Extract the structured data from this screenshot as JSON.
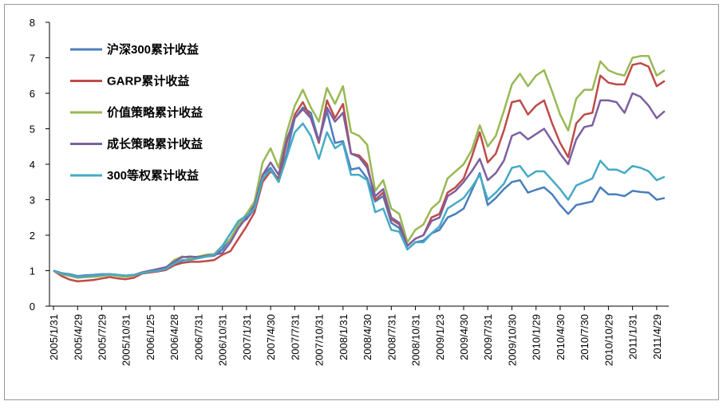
{
  "chart_data": {
    "type": "line",
    "categories": [
      "2005/1/31",
      null,
      null,
      "2005/4/29",
      null,
      null,
      "2005/7/29",
      null,
      null,
      "2005/10/31",
      null,
      null,
      "2006/1/25",
      null,
      null,
      "2006/4/28",
      null,
      null,
      "2006/7/31",
      null,
      null,
      "2006/10/31",
      null,
      null,
      "2007/1/31",
      null,
      null,
      "2007/4/30",
      null,
      null,
      "2007/7/31",
      null,
      null,
      "2007/10/31",
      null,
      null,
      "2008/1/31",
      null,
      null,
      "2008/4/30",
      null,
      null,
      "2008/7/31",
      null,
      null,
      "2008/10/31",
      null,
      null,
      "2009/1/23",
      null,
      null,
      "2009/4/30",
      null,
      null,
      "2009/7/31",
      null,
      null,
      "2009/10/30",
      null,
      null,
      "2010/1/29",
      null,
      null,
      "2010/4/30",
      null,
      null,
      "2010/7/30",
      null,
      null,
      "2010/10/29",
      null,
      null,
      "2011/1/31",
      null,
      null,
      "2011/4/29",
      null
    ],
    "series": [
      {
        "name": "沪深300累计收益",
        "color": "#4a7ebb",
        "values": [
          1.0,
          0.93,
          0.9,
          0.85,
          0.87,
          0.88,
          0.9,
          0.9,
          0.87,
          0.85,
          0.88,
          0.92,
          0.98,
          1.02,
          1.05,
          1.15,
          1.28,
          1.32,
          1.35,
          1.4,
          1.42,
          1.6,
          1.9,
          2.3,
          2.45,
          2.75,
          3.7,
          3.9,
          3.55,
          4.3,
          5.3,
          5.6,
          5.45,
          4.65,
          5.5,
          4.6,
          4.65,
          3.85,
          3.9,
          3.6,
          2.95,
          3.1,
          2.35,
          2.2,
          1.6,
          1.8,
          1.85,
          2.05,
          2.15,
          2.5,
          2.6,
          2.75,
          3.25,
          3.75,
          2.85,
          3.05,
          3.3,
          3.5,
          3.55,
          3.2,
          3.28,
          3.35,
          3.15,
          2.85,
          2.6,
          2.85,
          2.9,
          2.95,
          3.35,
          3.15,
          3.15,
          3.1,
          3.25,
          3.22,
          3.2,
          3.0,
          3.05
        ]
      },
      {
        "name": "GARP累计收益",
        "color": "#be4b48",
        "values": [
          1.0,
          0.85,
          0.75,
          0.7,
          0.72,
          0.74,
          0.78,
          0.82,
          0.78,
          0.76,
          0.8,
          0.92,
          0.95,
          0.98,
          1.02,
          1.15,
          1.22,
          1.25,
          1.25,
          1.27,
          1.3,
          1.45,
          1.55,
          1.9,
          2.25,
          2.65,
          3.5,
          3.8,
          3.6,
          4.6,
          5.4,
          5.75,
          5.3,
          4.6,
          5.8,
          5.3,
          5.7,
          4.3,
          4.25,
          4.0,
          3.0,
          3.2,
          2.45,
          2.3,
          1.7,
          1.9,
          2.0,
          2.5,
          2.6,
          3.2,
          3.35,
          3.6,
          4.2,
          4.9,
          4.05,
          4.3,
          4.95,
          5.75,
          5.8,
          5.4,
          5.65,
          5.8,
          5.15,
          4.6,
          4.2,
          5.15,
          5.4,
          5.45,
          6.5,
          6.3,
          6.25,
          6.25,
          6.8,
          6.85,
          6.75,
          6.2,
          6.35
        ]
      },
      {
        "name": "价值策略累计收益",
        "color": "#98b954",
        "values": [
          1.0,
          0.9,
          0.85,
          0.8,
          0.82,
          0.83,
          0.85,
          0.88,
          0.85,
          0.83,
          0.86,
          0.95,
          1.0,
          1.03,
          1.08,
          1.3,
          1.4,
          1.35,
          1.4,
          1.45,
          1.47,
          1.7,
          1.9,
          2.3,
          2.6,
          2.95,
          4.05,
          4.45,
          3.9,
          4.9,
          5.65,
          6.1,
          5.6,
          5.2,
          6.15,
          5.7,
          6.2,
          4.9,
          4.8,
          4.55,
          3.25,
          3.55,
          2.75,
          2.6,
          1.8,
          2.15,
          2.3,
          2.75,
          2.95,
          3.6,
          3.8,
          4.0,
          4.4,
          5.1,
          4.5,
          4.8,
          5.5,
          6.25,
          6.55,
          6.2,
          6.5,
          6.65,
          6.05,
          5.4,
          4.95,
          5.85,
          6.1,
          6.1,
          6.9,
          6.65,
          6.55,
          6.5,
          7.0,
          7.05,
          7.05,
          6.5,
          6.65
        ]
      },
      {
        "name": "成长策略累计收益",
        "color": "#7d60a0",
        "values": [
          1.0,
          0.93,
          0.88,
          0.82,
          0.84,
          0.86,
          0.88,
          0.9,
          0.88,
          0.86,
          0.88,
          0.95,
          1.0,
          1.05,
          1.1,
          1.25,
          1.38,
          1.4,
          1.38,
          1.42,
          1.45,
          1.5,
          1.8,
          2.2,
          2.5,
          2.85,
          3.7,
          4.05,
          3.7,
          4.7,
          5.3,
          5.55,
          5.3,
          4.65,
          5.6,
          5.2,
          5.45,
          4.3,
          4.2,
          3.9,
          3.1,
          3.3,
          2.5,
          2.35,
          1.7,
          1.9,
          2.0,
          2.4,
          2.5,
          3.1,
          3.25,
          3.5,
          3.8,
          4.15,
          3.55,
          3.75,
          4.1,
          4.8,
          4.9,
          4.7,
          4.85,
          5.0,
          4.65,
          4.3,
          4.0,
          4.7,
          5.05,
          5.1,
          5.8,
          5.8,
          5.75,
          5.45,
          6.0,
          5.9,
          5.65,
          5.3,
          5.5
        ]
      },
      {
        "name": "300等权累计收益",
        "color": "#46aac5",
        "values": [
          1.0,
          0.92,
          0.88,
          0.83,
          0.85,
          0.86,
          0.88,
          0.9,
          0.88,
          0.86,
          0.88,
          0.93,
          0.97,
          1.0,
          1.05,
          1.2,
          1.3,
          1.3,
          1.35,
          1.4,
          1.45,
          1.7,
          2.05,
          2.4,
          2.55,
          2.75,
          3.6,
          3.85,
          3.5,
          4.2,
          4.9,
          5.15,
          4.8,
          4.15,
          4.9,
          4.45,
          4.6,
          3.7,
          3.7,
          3.55,
          2.65,
          2.75,
          2.15,
          2.1,
          1.6,
          1.8,
          1.8,
          2.05,
          2.25,
          2.75,
          2.9,
          3.05,
          3.35,
          3.7,
          3.0,
          3.2,
          3.45,
          3.9,
          3.95,
          3.65,
          3.8,
          3.8,
          3.55,
          3.3,
          3.0,
          3.4,
          3.5,
          3.6,
          4.1,
          3.85,
          3.85,
          3.75,
          3.95,
          3.9,
          3.8,
          3.55,
          3.65
        ]
      }
    ],
    "ylim": [
      0,
      8
    ],
    "yticks": [
      0,
      1,
      2,
      3,
      4,
      5,
      6,
      7,
      8
    ],
    "grid": false,
    "legend": "upper-left"
  }
}
